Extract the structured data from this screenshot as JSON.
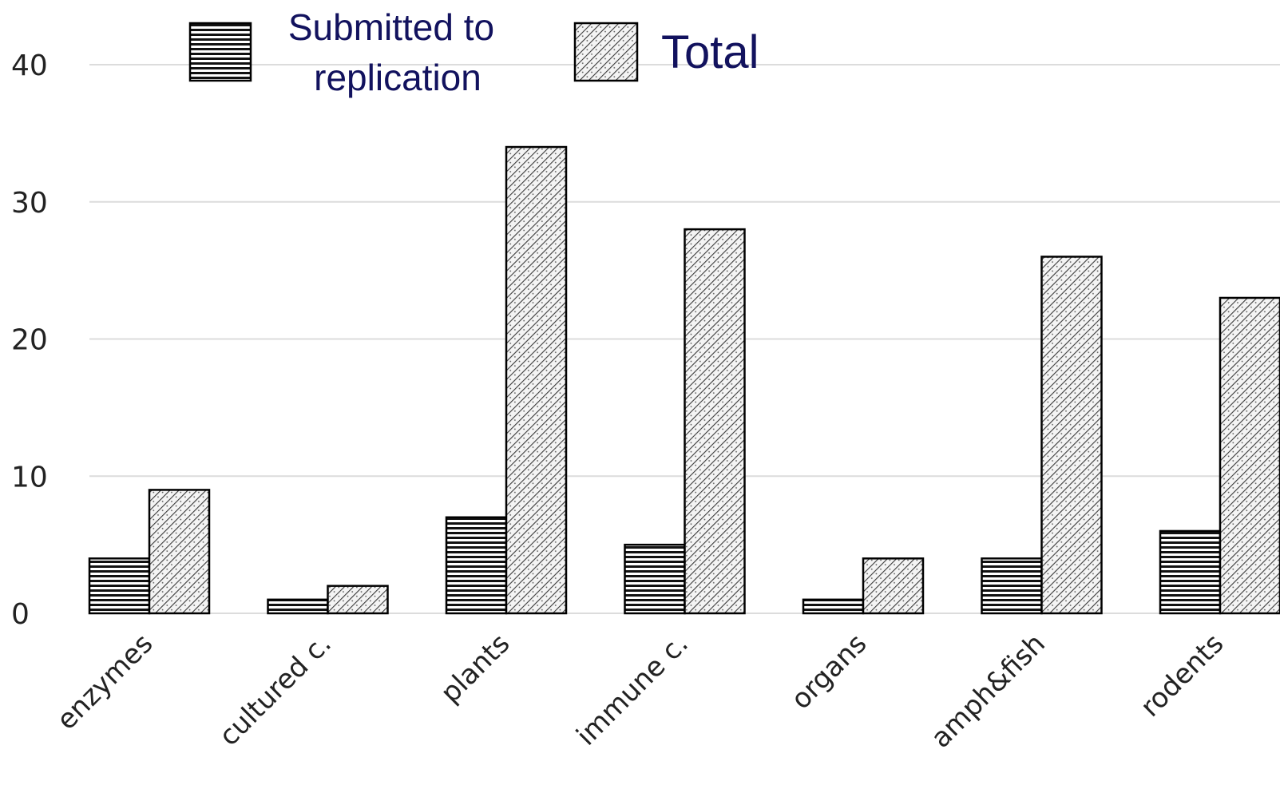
{
  "chart_data": {
    "type": "bar",
    "categories": [
      "enzymes",
      "cultured c.",
      "plants",
      "immune c.",
      "organs",
      "amph&fish",
      "rodents"
    ],
    "series": [
      {
        "name": "Submitted to replication",
        "values": [
          4,
          1,
          7,
          5,
          1,
          4,
          6
        ],
        "pattern": "horizontal-stripes"
      },
      {
        "name": "Total",
        "values": [
          9,
          2,
          34,
          28,
          4,
          26,
          23
        ],
        "pattern": "diagonal-hatch"
      }
    ],
    "ylim": [
      0,
      40
    ],
    "yticks": [
      "0",
      "10",
      "20",
      "30",
      "40"
    ],
    "title": "",
    "xlabel": "",
    "ylabel": "",
    "grid": true,
    "legend_position": "top-left",
    "colors": {
      "legend_text": "#12125e",
      "gridline": "#dcdcdc",
      "bar_stroke": "#000000"
    }
  },
  "legend": {
    "submitted_line1": "Submitted to",
    "submitted_line2": "replication",
    "total": "Total"
  }
}
